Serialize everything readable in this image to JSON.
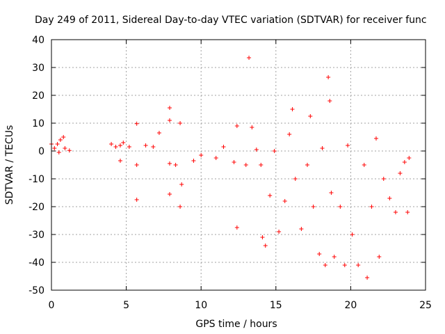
{
  "chart_data": {
    "type": "scatter",
    "title": "Day 249 of 2011, Sidereal Day-to-day VTEC variation (SDTVAR) for receiver func",
    "xlabel": "GPS time / hours",
    "ylabel": "SDTVAR / TECUs",
    "xlim": [
      0,
      25
    ],
    "ylim": [
      -50,
      40
    ],
    "xticks": [
      0,
      5,
      10,
      15,
      20,
      25
    ],
    "yticks": [
      -50,
      -40,
      -30,
      -20,
      -10,
      0,
      10,
      20,
      30,
      40
    ],
    "xtick_labels": [
      "0",
      "5",
      "10",
      "15",
      "20",
      "25"
    ],
    "ytick_labels": [
      "-50",
      "-40",
      "-30",
      "-20",
      "-10",
      "0",
      "10",
      "20",
      "30",
      "40"
    ],
    "grid": true,
    "marker": "+",
    "color": "#ff0000",
    "series": [
      {
        "name": "SDTVAR",
        "points": [
          [
            0.0,
            2.5
          ],
          [
            0.2,
            1.0
          ],
          [
            0.4,
            2.5
          ],
          [
            0.6,
            4.0
          ],
          [
            0.8,
            5.0
          ],
          [
            0.5,
            -0.5
          ],
          [
            0.9,
            1.0
          ],
          [
            1.2,
            0.2
          ],
          [
            4.0,
            2.5
          ],
          [
            4.3,
            1.5
          ],
          [
            4.6,
            2.0
          ],
          [
            4.6,
            -3.5
          ],
          [
            4.8,
            3.0
          ],
          [
            5.2,
            1.5
          ],
          [
            5.7,
            9.8
          ],
          [
            5.7,
            -5.0
          ],
          [
            5.7,
            -17.5
          ],
          [
            6.3,
            2.0
          ],
          [
            6.8,
            1.5
          ],
          [
            7.2,
            6.5
          ],
          [
            7.9,
            15.5
          ],
          [
            7.9,
            11.0
          ],
          [
            7.9,
            -4.5
          ],
          [
            7.9,
            -15.5
          ],
          [
            8.3,
            -5.0
          ],
          [
            8.6,
            10.0
          ],
          [
            8.6,
            -20.0
          ],
          [
            8.7,
            -12.0
          ],
          [
            9.5,
            -3.5
          ],
          [
            10.0,
            -1.5
          ],
          [
            11.0,
            -2.5
          ],
          [
            11.5,
            1.5
          ],
          [
            12.2,
            -4.0
          ],
          [
            12.4,
            9.0
          ],
          [
            12.4,
            -27.5
          ],
          [
            13.0,
            -5.0
          ],
          [
            13.2,
            33.5
          ],
          [
            13.4,
            8.5
          ],
          [
            13.7,
            0.5
          ],
          [
            14.0,
            -5.0
          ],
          [
            14.1,
            -31.0
          ],
          [
            14.3,
            -34.0
          ],
          [
            14.6,
            -16.0
          ],
          [
            14.9,
            0.0
          ],
          [
            15.2,
            -29.0
          ],
          [
            15.6,
            -18.0
          ],
          [
            15.9,
            6.0
          ],
          [
            16.1,
            15.0
          ],
          [
            16.3,
            -10.0
          ],
          [
            16.7,
            -28.0
          ],
          [
            17.1,
            -5.0
          ],
          [
            17.3,
            12.5
          ],
          [
            17.5,
            -20.0
          ],
          [
            17.9,
            -37.0
          ],
          [
            18.1,
            1.0
          ],
          [
            18.3,
            -41.0
          ],
          [
            18.5,
            26.5
          ],
          [
            18.6,
            18.0
          ],
          [
            18.7,
            -15.0
          ],
          [
            18.9,
            -38.0
          ],
          [
            19.3,
            -20.0
          ],
          [
            19.6,
            -41.0
          ],
          [
            19.8,
            2.0
          ],
          [
            20.1,
            -30.0
          ],
          [
            20.5,
            -41.0
          ],
          [
            20.9,
            -5.0
          ],
          [
            21.1,
            -45.5
          ],
          [
            21.4,
            -20.0
          ],
          [
            21.7,
            4.5
          ],
          [
            21.9,
            -38.0
          ],
          [
            22.2,
            -10.0
          ],
          [
            22.6,
            -17.0
          ],
          [
            23.0,
            -22.0
          ],
          [
            23.3,
            -8.0
          ],
          [
            23.6,
            -4.0
          ],
          [
            23.8,
            -22.0
          ],
          [
            23.9,
            -2.5
          ]
        ]
      }
    ]
  }
}
